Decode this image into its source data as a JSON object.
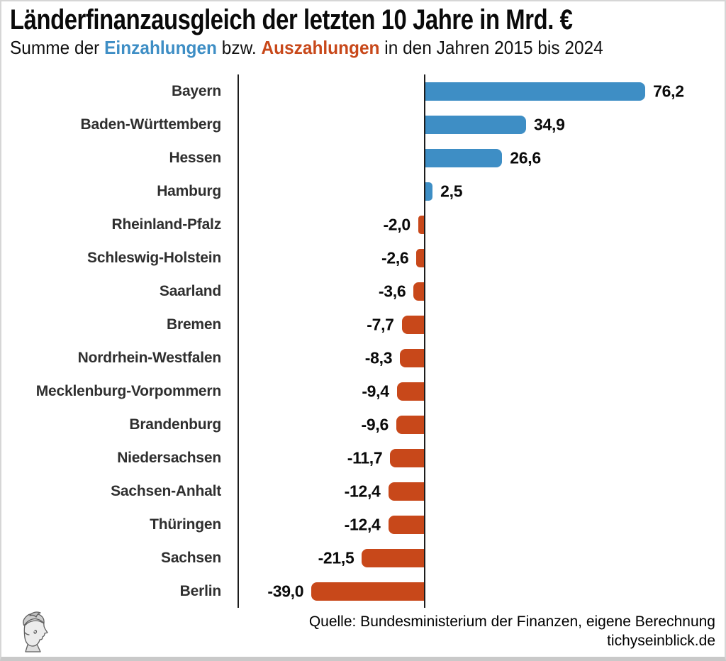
{
  "title": "Länderfinanzausgleich der letzten 10 Jahre in Mrd. €",
  "subtitle": {
    "prefix": "Summe der ",
    "inflow_label": "Einzahlungen",
    "middle": " bzw. ",
    "outflow_label": "Auszahlungen",
    "suffix": " in den Jahren 2015 bis 2024"
  },
  "colors": {
    "positive": "#3E8EC5",
    "negative": "#C8481A",
    "axis": "#1C1C1C",
    "category_label": "#2F2F2F",
    "value_label": "#0A0A0A"
  },
  "chart_data": {
    "type": "bar",
    "orientation": "horizontal",
    "unit": "Mrd. €",
    "grid": false,
    "legend_position": "inline-in-subtitle",
    "x_range_approx": [
      -65,
      103
    ],
    "series": [
      {
        "name": "Einzahlungen",
        "color": "#3E8EC5",
        "applies_to": "positive values"
      },
      {
        "name": "Auszahlungen",
        "color": "#C8481A",
        "applies_to": "negative values"
      }
    ],
    "categories": [
      "Bayern",
      "Baden-Württemberg",
      "Hessen",
      "Hamburg",
      "Rheinland-Pfalz",
      "Schleswig-Holstein",
      "Saarland",
      "Bremen",
      "Nordrhein-Westfalen",
      "Mecklenburg-Vorpommern",
      "Brandenburg",
      "Niedersachsen",
      "Sachsen-Anhalt",
      "Thüringen",
      "Sachsen",
      "Berlin"
    ],
    "values": [
      76.2,
      34.9,
      26.6,
      2.5,
      -2.0,
      -2.6,
      -3.6,
      -7.7,
      -8.3,
      -9.4,
      -9.6,
      -11.7,
      -12.4,
      -12.4,
      -21.5,
      -39.0
    ],
    "value_labels": [
      "76,2",
      "34,9",
      "26,6",
      "2,5",
      "-2,0",
      "-2,6",
      "-3,6",
      "-7,7",
      "-8,3",
      "-9,4",
      "-9,6",
      "-11,7",
      "-12,4",
      "-12,4",
      "-21,5",
      "-39,0"
    ]
  },
  "footer": {
    "source": "Quelle: Bundesministerium der Finanzen, eigene Berechnung",
    "site": "tichyseinblick.de"
  },
  "logo_name": "mercury-head-logo"
}
